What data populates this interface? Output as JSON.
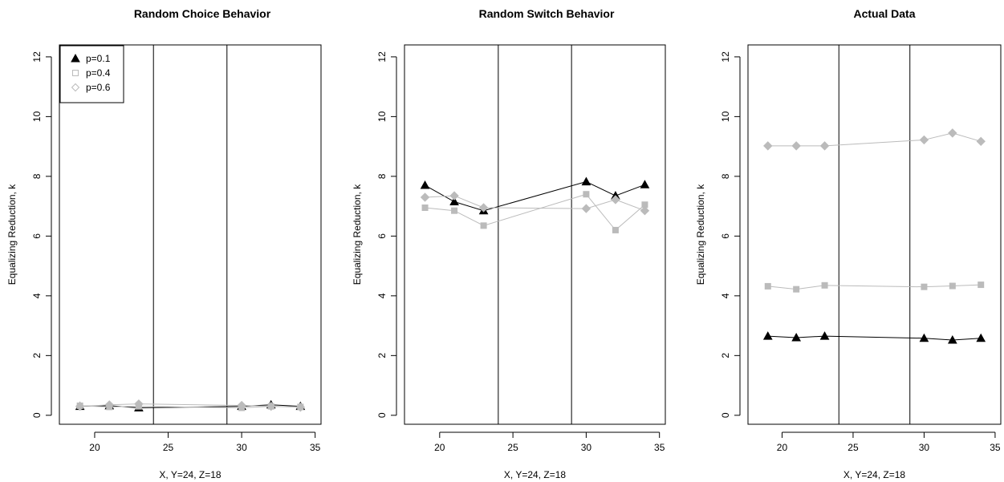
{
  "chart_data": [
    {
      "type": "line",
      "title": "Random Choice Behavior",
      "xlabel": "X, Y=24, Z=18",
      "ylabel": "Equalizing Reduction, k",
      "xlim": [
        17.6,
        35.4
      ],
      "ylim": [
        -0.3,
        12.4
      ],
      "xticks": [
        20,
        25,
        30,
        35
      ],
      "yticks": [
        0,
        2,
        4,
        6,
        8,
        10,
        12
      ],
      "vlines": [
        24,
        29
      ],
      "x": [
        19,
        21,
        23,
        30,
        32,
        34
      ],
      "legend": {
        "position": "top-left",
        "entries": [
          "p=0.1",
          "p=0.4",
          "p=0.6"
        ]
      },
      "series": [
        {
          "name": "p=0.1",
          "marker": "triangle",
          "color": "#000000",
          "values": [
            0.3,
            0.32,
            0.25,
            0.3,
            0.35,
            0.3
          ]
        },
        {
          "name": "p=0.4",
          "marker": "square",
          "color": "#bbbbbb",
          "values": [
            0.32,
            0.28,
            0.3,
            0.25,
            0.3,
            0.28
          ]
        },
        {
          "name": "p=0.6",
          "marker": "diamond",
          "color": "#bbbbbb",
          "values": [
            0.3,
            0.35,
            0.38,
            0.33,
            0.3,
            0.27
          ]
        }
      ]
    },
    {
      "type": "line",
      "title": "Random Switch Behavior",
      "xlabel": "X, Y=24, Z=18",
      "ylabel": "Equalizing Reduction, k",
      "xlim": [
        17.6,
        35.4
      ],
      "ylim": [
        -0.3,
        12.4
      ],
      "xticks": [
        20,
        25,
        30,
        35
      ],
      "yticks": [
        0,
        2,
        4,
        6,
        8,
        10,
        12
      ],
      "vlines": [
        24,
        29
      ],
      "x": [
        19,
        21,
        23,
        30,
        32,
        34
      ],
      "series": [
        {
          "name": "p=0.1",
          "marker": "triangle",
          "color": "#000000",
          "values": [
            7.7,
            7.15,
            6.85,
            7.82,
            7.35,
            7.72
          ]
        },
        {
          "name": "p=0.4",
          "marker": "square",
          "color": "#bbbbbb",
          "values": [
            6.95,
            6.85,
            6.35,
            7.4,
            6.2,
            7.05
          ]
        },
        {
          "name": "p=0.6",
          "marker": "diamond",
          "color": "#bbbbbb",
          "values": [
            7.3,
            7.35,
            6.95,
            6.92,
            7.22,
            6.85
          ]
        }
      ]
    },
    {
      "type": "line",
      "title": "Actual Data",
      "xlabel": "X, Y=24, Z=18",
      "ylabel": "Equalizing Reduction, k",
      "xlim": [
        17.6,
        35.4
      ],
      "ylim": [
        -0.3,
        12.4
      ],
      "xticks": [
        20,
        25,
        30,
        35
      ],
      "yticks": [
        0,
        2,
        4,
        6,
        8,
        10,
        12
      ],
      "vlines": [
        24,
        29
      ],
      "x": [
        19,
        21,
        23,
        30,
        32,
        34
      ],
      "series": [
        {
          "name": "p=0.1",
          "marker": "triangle",
          "color": "#000000",
          "values": [
            2.65,
            2.6,
            2.65,
            2.58,
            2.52,
            2.58
          ]
        },
        {
          "name": "p=0.4",
          "marker": "square",
          "color": "#bbbbbb",
          "values": [
            4.32,
            4.22,
            4.35,
            4.3,
            4.33,
            4.37
          ]
        },
        {
          "name": "p=0.6",
          "marker": "diamond",
          "color": "#bbbbbb",
          "values": [
            9.02,
            9.02,
            9.02,
            9.22,
            9.45,
            9.17
          ]
        }
      ]
    }
  ]
}
